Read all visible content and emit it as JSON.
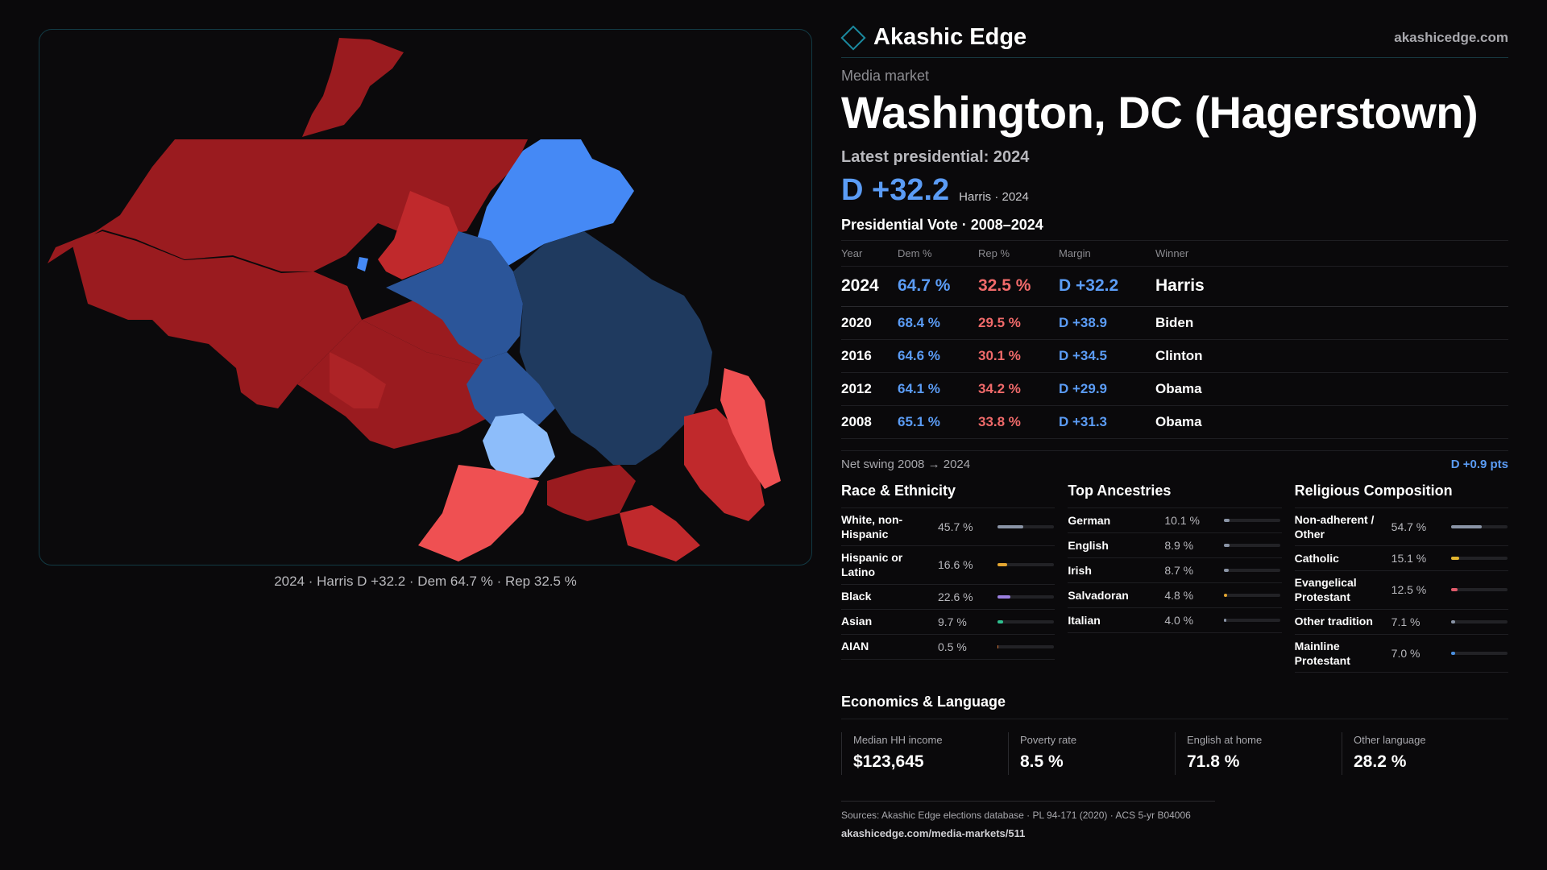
{
  "brand": {
    "name": "Akashic Edge",
    "site": "akashicedge.com"
  },
  "market": {
    "eyebrow": "Media market",
    "name": "Washington, DC (Hagerstown)",
    "latest_label": "Latest presidential: 2024",
    "margin": "D +32.2",
    "margin_sub": "Harris · 2024"
  },
  "map": {
    "caption": "2024 · Harris D +32.2 · Dem 64.7 % · Rep 32.5 %"
  },
  "votes": {
    "title": "Presidential Vote · 2008–2024",
    "headers": {
      "year": "Year",
      "dem": "Dem %",
      "rep": "Rep %",
      "margin": "Margin",
      "winner": "Winner"
    },
    "rows": [
      {
        "year": "2024",
        "dem": "64.7 %",
        "rep": "32.5 %",
        "margin": "D +32.2",
        "winner": "Harris"
      },
      {
        "year": "2020",
        "dem": "68.4 %",
        "rep": "29.5 %",
        "margin": "D +38.9",
        "winner": "Biden"
      },
      {
        "year": "2016",
        "dem": "64.6 %",
        "rep": "30.1 %",
        "margin": "D +34.5",
        "winner": "Clinton"
      },
      {
        "year": "2012",
        "dem": "64.1 %",
        "rep": "34.2 %",
        "margin": "D +29.9",
        "winner": "Obama"
      },
      {
        "year": "2008",
        "dem": "65.1 %",
        "rep": "33.8 %",
        "margin": "D +31.3",
        "winner": "Obama"
      }
    ],
    "swing_label": "Net swing 2008 → 2024",
    "swing_value": "D +0.9 pts"
  },
  "race": {
    "title": "Race & Ethnicity",
    "items": [
      {
        "label": "White, non-Hispanic",
        "value": "45.7 %",
        "share": 0.457,
        "color": "#8a94a6"
      },
      {
        "label": "Hispanic or Latino",
        "value": "16.6 %",
        "share": 0.166,
        "color": "#e3a531"
      },
      {
        "label": "Black",
        "value": "22.6 %",
        "share": 0.226,
        "color": "#9b7fe0"
      },
      {
        "label": "Asian",
        "value": "9.7 %",
        "share": 0.097,
        "color": "#2fbf8f"
      },
      {
        "label": "AIAN",
        "value": "0.5 %",
        "share": 0.005,
        "color": "#d9773a"
      }
    ]
  },
  "ancestry": {
    "title": "Top Ancestries",
    "items": [
      {
        "label": "German",
        "value": "10.1 %",
        "share": 0.101,
        "color": "#8a94a6"
      },
      {
        "label": "English",
        "value": "8.9 %",
        "share": 0.089,
        "color": "#8a94a6"
      },
      {
        "label": "Irish",
        "value": "8.7 %",
        "share": 0.087,
        "color": "#8a94a6"
      },
      {
        "label": "Salvadoran",
        "value": "4.8 %",
        "share": 0.048,
        "color": "#e3a531"
      },
      {
        "label": "Italian",
        "value": "4.0 %",
        "share": 0.04,
        "color": "#8a94a6"
      }
    ]
  },
  "religion": {
    "title": "Religious Composition",
    "items": [
      {
        "label": "Non-adherent / Other",
        "value": "54.7 %",
        "share": 0.547,
        "color": "#8a94a6"
      },
      {
        "label": "Catholic",
        "value": "15.1 %",
        "share": 0.151,
        "color": "#e3b52e"
      },
      {
        "label": "Evangelical Protestant",
        "value": "12.5 %",
        "share": 0.125,
        "color": "#e05a6a"
      },
      {
        "label": "Other tradition",
        "value": "7.1 %",
        "share": 0.071,
        "color": "#8a94a6"
      },
      {
        "label": "Mainline Protestant",
        "value": "7.0 %",
        "share": 0.07,
        "color": "#4a8fe0"
      }
    ]
  },
  "economics": {
    "title": "Economics & Language",
    "cards": [
      {
        "label": "Median HH income",
        "value": "$123,645"
      },
      {
        "label": "Poverty rate",
        "value": "8.5 %"
      },
      {
        "label": "English at home",
        "value": "71.8 %"
      },
      {
        "label": "Other language",
        "value": "28.2 %"
      }
    ]
  },
  "sources": {
    "text": "Sources: Akashic Edge elections database · PL 94-171 (2020) · ACS 5-yr B04006",
    "url": "akashicedge.com/media-markets/511"
  },
  "colors": {
    "dem_strong": "#1f3a5f",
    "dem_mid": "#2b5599",
    "dem_light": "#4589f5",
    "dem_pale": "#8dbdfa",
    "rep_strong": "#9a1b1f",
    "rep_mid": "#c0292c",
    "rep_light": "#ef5052"
  }
}
